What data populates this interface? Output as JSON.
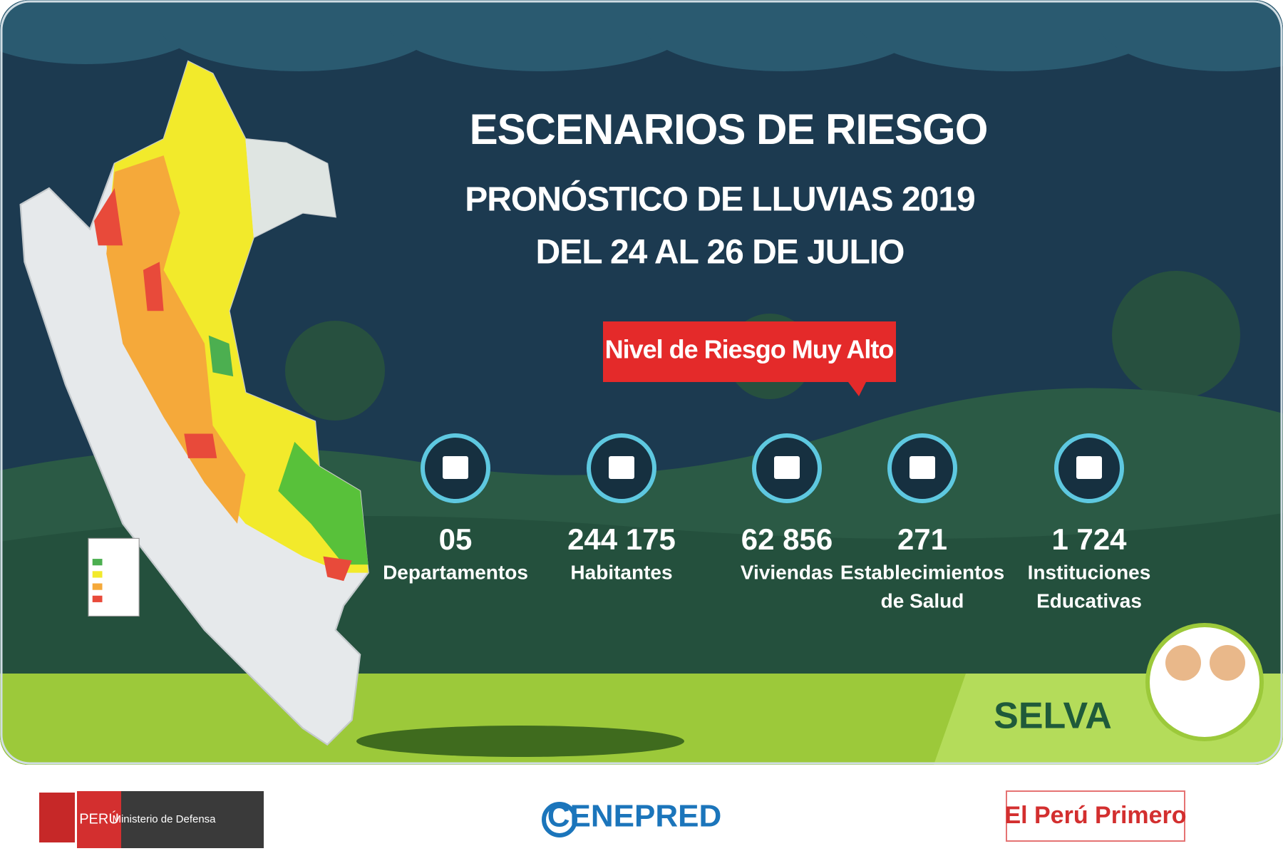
{
  "header": {
    "title": "ESCENARIOS DE RIESGO",
    "subtitle": "PRONÓSTICO DE LLUVIAS 2019",
    "dates": "DEL 24 AL 26 DE JULIO"
  },
  "badge": "Nivel de Riesgo Muy Alto",
  "stats": [
    {
      "value": "05",
      "label": [
        "Departamentos"
      ]
    },
    {
      "value": "244 175",
      "label": [
        "Habitantes"
      ]
    },
    {
      "value": "62 856",
      "label": [
        "Viviendas"
      ]
    },
    {
      "value": "271",
      "label": [
        "Establecimientos",
        "de Salud"
      ]
    },
    {
      "value": "1 724",
      "label": [
        "Instituciones",
        "Educativas"
      ]
    }
  ],
  "region": "SELVA",
  "footer": {
    "country": "PERÚ",
    "ministry": "Ministerio de Defensa",
    "agency": "CENEPRED",
    "slogan": "El Perú Primero"
  }
}
